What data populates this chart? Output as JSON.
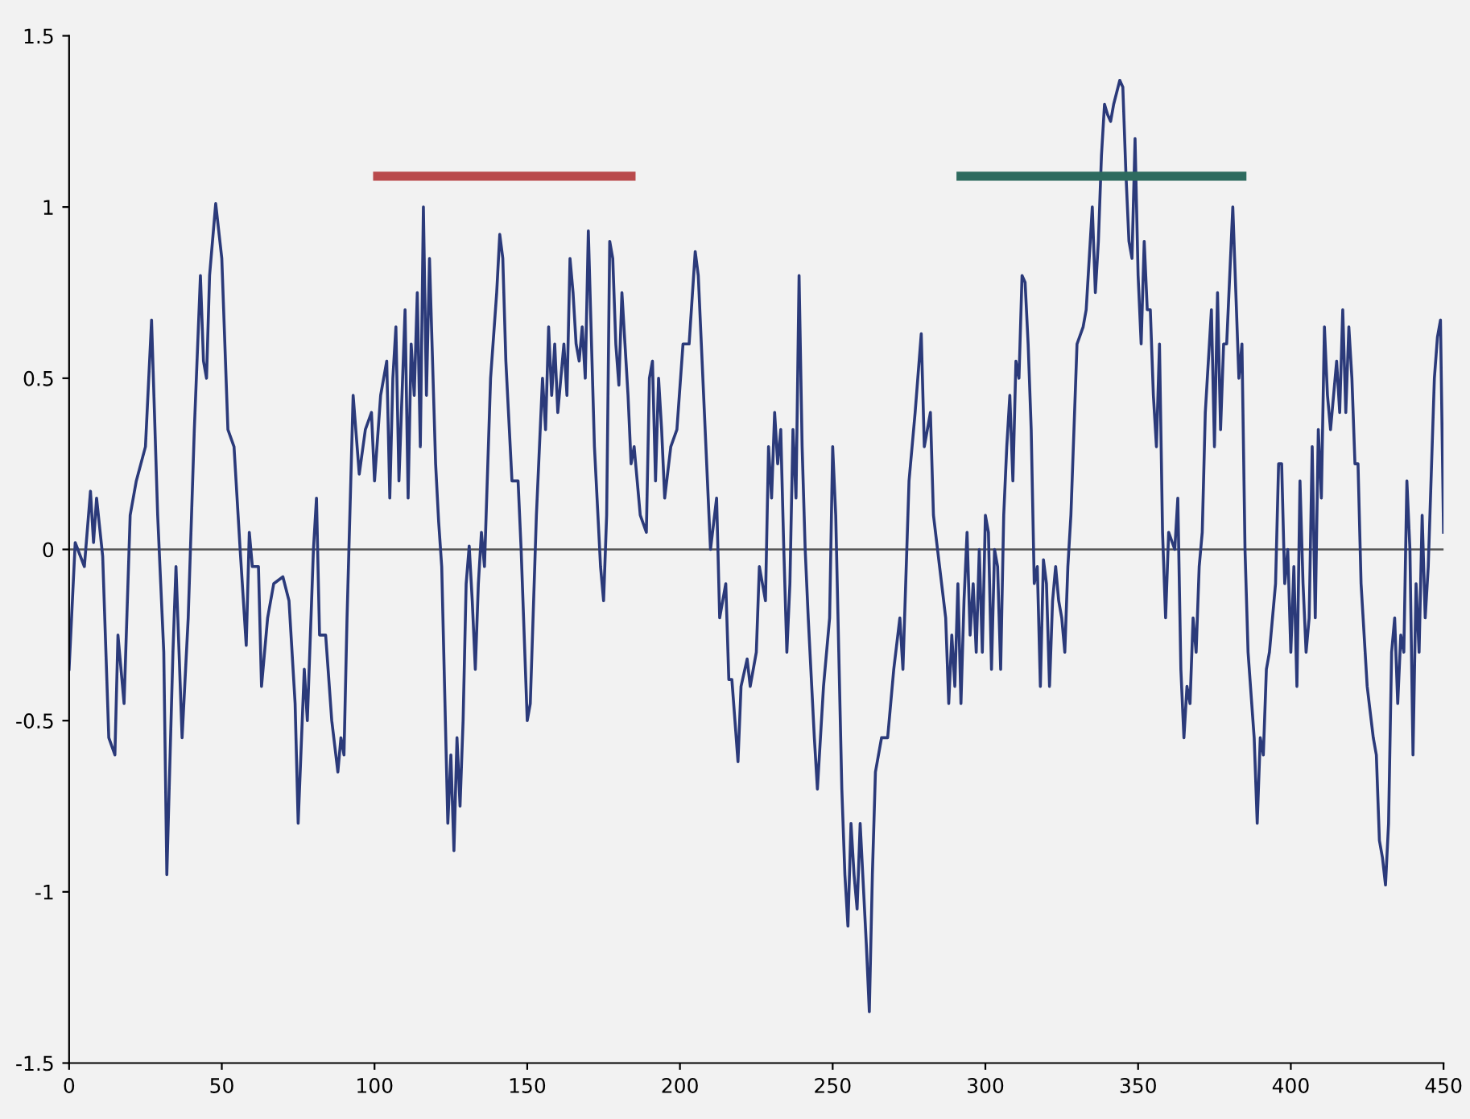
{
  "chart_data": {
    "type": "line",
    "xlim": [
      0,
      450
    ],
    "ylim": [
      -1.5,
      1.5
    ],
    "xticks": [
      0,
      50,
      100,
      150,
      200,
      250,
      300,
      350,
      400,
      450
    ],
    "yticks": [
      {
        "value": -1.5,
        "label": "-1.5"
      },
      {
        "value": -1,
        "label": "-1"
      },
      {
        "value": -0.5,
        "label": "-0.5"
      },
      {
        "value": 0,
        "label": "0"
      },
      {
        "value": 0.5,
        "label": "0.5"
      },
      {
        "value": 1,
        "label": "1"
      },
      {
        "value": 1.5,
        "label": "1.5"
      }
    ],
    "grid": false,
    "ref_lines": [
      {
        "axis": "y",
        "value": 0,
        "color": "#555555"
      }
    ],
    "series": [
      {
        "color": "#2b3a7a",
        "x": [
          0,
          2,
          5,
          7,
          8,
          9,
          11,
          13,
          15,
          16,
          18,
          20,
          22,
          25,
          27,
          29,
          30,
          31,
          32,
          34,
          35,
          37,
          39,
          41,
          43,
          44,
          45,
          46,
          48,
          50,
          52,
          54,
          56,
          58,
          59,
          60,
          62,
          63,
          65,
          67,
          70,
          72,
          74,
          75,
          77,
          78,
          79,
          80,
          81,
          82,
          84,
          86,
          88,
          89,
          90,
          91,
          93,
          95,
          97,
          99,
          100,
          102,
          104,
          105,
          106,
          107,
          108,
          110,
          111,
          112,
          113,
          114,
          115,
          116,
          117,
          118,
          120,
          121,
          122,
          124,
          125,
          126,
          127,
          128,
          129,
          130,
          131,
          132,
          133,
          134,
          135,
          136,
          138,
          140,
          141,
          142,
          143,
          145,
          147,
          148,
          150,
          151,
          153,
          155,
          156,
          157,
          158,
          159,
          160,
          162,
          163,
          164,
          165,
          166,
          167,
          168,
          169,
          170,
          172,
          174,
          175,
          176,
          177,
          178,
          179,
          180,
          181,
          183,
          184,
          185,
          187,
          189,
          190,
          191,
          192,
          193,
          194,
          195,
          197,
          199,
          201,
          203,
          205,
          206,
          207,
          209,
          210,
          212,
          213,
          215,
          216,
          217,
          218,
          219,
          220,
          222,
          223,
          225,
          226,
          228,
          229,
          230,
          231,
          232,
          233,
          234,
          235,
          236,
          237,
          238,
          239,
          240,
          241,
          242,
          244,
          245,
          247,
          249,
          250,
          251,
          252,
          253,
          254,
          255,
          256,
          257,
          258,
          259,
          261,
          262,
          263,
          264,
          266,
          268,
          270,
          272,
          273,
          275,
          277,
          279,
          280,
          282,
          283,
          285,
          287,
          288,
          289,
          290,
          291,
          292,
          293,
          294,
          295,
          296,
          297,
          298,
          299,
          300,
          301,
          302,
          303,
          304,
          305,
          306,
          307,
          308,
          309,
          310,
          311,
          312,
          313,
          314,
          315,
          316,
          317,
          318,
          319,
          320,
          321,
          322,
          323,
          324,
          325,
          326,
          327,
          328,
          330,
          332,
          333,
          334,
          335,
          336,
          337,
          338,
          339,
          340,
          341,
          342,
          344,
          345,
          346,
          347,
          348,
          349,
          350,
          351,
          352,
          353,
          354,
          355,
          356,
          357,
          358,
          359,
          360,
          362,
          363,
          364,
          365,
          366,
          367,
          368,
          369,
          370,
          371,
          372,
          374,
          375,
          376,
          377,
          378,
          379,
          381,
          382,
          383,
          384,
          385,
          386,
          388,
          389,
          390,
          391,
          392,
          393,
          395,
          396,
          397,
          398,
          399,
          400,
          401,
          402,
          403,
          404,
          405,
          406,
          407,
          408,
          409,
          410,
          411,
          412,
          413,
          414,
          415,
          416,
          417,
          418,
          419,
          420,
          421,
          422,
          423,
          425,
          427,
          428,
          429,
          430,
          431,
          432,
          433,
          434,
          435,
          436,
          437,
          438,
          439,
          440,
          441,
          442,
          443,
          444,
          445,
          447,
          448,
          449,
          450
        ],
        "values": [
          -0.35,
          0.02,
          -0.05,
          0.17,
          0.02,
          0.15,
          -0.02,
          -0.55,
          -0.6,
          -0.25,
          -0.45,
          0.1,
          0.2,
          0.3,
          0.67,
          0.1,
          -0.1,
          -0.3,
          -0.95,
          -0.3,
          -0.05,
          -0.55,
          -0.2,
          0.35,
          0.8,
          0.55,
          0.5,
          0.8,
          1.01,
          0.85,
          0.35,
          0.3,
          0.0,
          -0.28,
          0.05,
          -0.05,
          -0.05,
          -0.4,
          -0.2,
          -0.1,
          -0.08,
          -0.15,
          -0.45,
          -0.8,
          -0.35,
          -0.5,
          -0.25,
          0.0,
          0.15,
          -0.25,
          -0.25,
          -0.5,
          -0.65,
          -0.55,
          -0.6,
          -0.2,
          0.45,
          0.22,
          0.35,
          0.4,
          0.2,
          0.45,
          0.55,
          0.15,
          0.5,
          0.65,
          0.2,
          0.7,
          0.15,
          0.6,
          0.45,
          0.75,
          0.3,
          1.0,
          0.45,
          0.85,
          0.25,
          0.08,
          -0.05,
          -0.8,
          -0.6,
          -0.88,
          -0.55,
          -0.75,
          -0.5,
          -0.1,
          0.01,
          -0.15,
          -0.35,
          -0.1,
          0.05,
          -0.05,
          0.5,
          0.75,
          0.92,
          0.85,
          0.55,
          0.2,
          0.2,
          0.0,
          -0.5,
          -0.45,
          0.1,
          0.5,
          0.35,
          0.65,
          0.45,
          0.6,
          0.4,
          0.6,
          0.45,
          0.85,
          0.75,
          0.6,
          0.55,
          0.65,
          0.5,
          0.93,
          0.3,
          -0.05,
          -0.15,
          0.1,
          0.9,
          0.85,
          0.6,
          0.48,
          0.75,
          0.45,
          0.25,
          0.3,
          0.1,
          0.05,
          0.5,
          0.55,
          0.2,
          0.5,
          0.35,
          0.15,
          0.3,
          0.35,
          0.6,
          0.6,
          0.87,
          0.8,
          0.6,
          0.2,
          0.0,
          0.15,
          -0.2,
          -0.1,
          -0.38,
          -0.38,
          -0.5,
          -0.62,
          -0.4,
          -0.32,
          -0.4,
          -0.3,
          -0.05,
          -0.15,
          0.3,
          0.15,
          0.4,
          0.25,
          0.35,
          0.0,
          -0.3,
          -0.1,
          0.35,
          0.15,
          0.8,
          0.3,
          0.0,
          -0.2,
          -0.55,
          -0.7,
          -0.4,
          -0.2,
          0.3,
          0.1,
          -0.3,
          -0.7,
          -0.95,
          -1.1,
          -0.8,
          -0.95,
          -1.05,
          -0.8,
          -1.15,
          -1.35,
          -0.95,
          -0.65,
          -0.55,
          -0.55,
          -0.35,
          -0.2,
          -0.35,
          0.2,
          0.4,
          0.63,
          0.3,
          0.4,
          0.1,
          -0.05,
          -0.2,
          -0.45,
          -0.25,
          -0.4,
          -0.1,
          -0.45,
          -0.15,
          0.05,
          -0.25,
          -0.1,
          -0.3,
          0.0,
          -0.3,
          0.1,
          0.05,
          -0.35,
          0.0,
          -0.05,
          -0.35,
          0.1,
          0.3,
          0.45,
          0.2,
          0.55,
          0.5,
          0.8,
          0.78,
          0.6,
          0.35,
          -0.1,
          -0.05,
          -0.4,
          -0.03,
          -0.1,
          -0.4,
          -0.15,
          -0.05,
          -0.15,
          -0.2,
          -0.3,
          -0.05,
          0.1,
          0.6,
          0.65,
          0.7,
          0.85,
          1.0,
          0.75,
          0.9,
          1.15,
          1.3,
          1.27,
          1.25,
          1.3,
          1.37,
          1.35,
          1.1,
          0.9,
          0.85,
          1.2,
          0.8,
          0.6,
          0.9,
          0.7,
          0.7,
          0.45,
          0.3,
          0.6,
          0.05,
          -0.2,
          0.05,
          0.0,
          0.15,
          -0.35,
          -0.55,
          -0.4,
          -0.45,
          -0.2,
          -0.3,
          -0.05,
          0.05,
          0.4,
          0.7,
          0.3,
          0.75,
          0.35,
          0.6,
          0.6,
          1.0,
          0.75,
          0.5,
          0.6,
          0.0,
          -0.3,
          -0.55,
          -0.8,
          -0.55,
          -0.6,
          -0.35,
          -0.3,
          -0.1,
          0.25,
          0.25,
          -0.1,
          0.0,
          -0.3,
          -0.05,
          -0.4,
          0.2,
          -0.1,
          -0.3,
          -0.2,
          0.3,
          -0.2,
          0.35,
          0.15,
          0.65,
          0.45,
          0.35,
          0.45,
          0.55,
          0.4,
          0.7,
          0.4,
          0.65,
          0.5,
          0.25,
          0.25,
          -0.1,
          -0.4,
          -0.55,
          -0.6,
          -0.85,
          -0.9,
          -0.98,
          -0.8,
          -0.3,
          -0.2,
          -0.45,
          -0.25,
          -0.3,
          0.2,
          0.0,
          -0.6,
          -0.1,
          -0.3,
          0.1,
          -0.2,
          -0.05,
          0.5,
          0.62,
          0.67,
          0.05
        ]
      },
      {
        "color": "#b94a4c",
        "x": [
          101,
          184
        ],
        "values": [
          1.09,
          1.09
        ]
      },
      {
        "color": "#2e6b5f",
        "x": [
          292,
          384
        ],
        "values": [
          1.09,
          1.09
        ]
      }
    ]
  }
}
